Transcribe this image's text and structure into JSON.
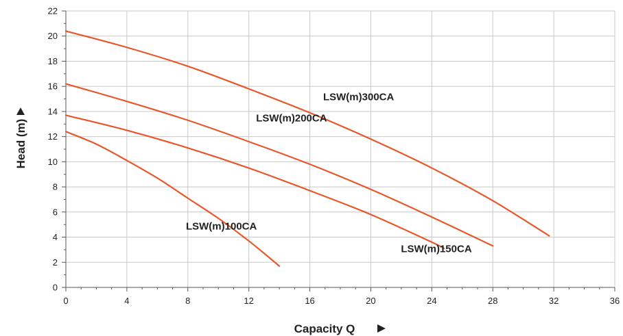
{
  "chart_data": {
    "type": "line",
    "title": "",
    "xlabel": "Capacity Q",
    "ylabel": "Head (m)",
    "xlim": [
      0,
      36
    ],
    "ylim": [
      0,
      22
    ],
    "xticks": [
      0,
      4,
      8,
      12,
      16,
      20,
      24,
      28,
      32,
      36
    ],
    "yticks": [
      0,
      2,
      4,
      6,
      8,
      10,
      12,
      14,
      16,
      18,
      20,
      22
    ],
    "grid": true,
    "legend": "none",
    "line_color": "#e8572a",
    "series": [
      {
        "name": "LSW(m)100CA",
        "x": [
          0,
          2,
          4,
          6,
          8,
          10,
          12,
          14
        ],
        "y": [
          12.4,
          11.4,
          10.1,
          8.7,
          7.1,
          5.5,
          3.7,
          1.7
        ]
      },
      {
        "name": "LSW(m)150CA",
        "x": [
          0,
          4,
          8,
          12,
          16,
          20,
          24,
          24.8
        ],
        "y": [
          13.7,
          12.5,
          11.1,
          9.5,
          7.7,
          5.8,
          3.6,
          3.1
        ]
      },
      {
        "name": "LSW(m)200CA",
        "x": [
          0,
          4,
          8,
          12,
          16,
          20,
          24,
          28
        ],
        "y": [
          16.2,
          14.8,
          13.3,
          11.6,
          9.8,
          7.8,
          5.6,
          3.3
        ]
      },
      {
        "name": "LSW(m)300CA",
        "x": [
          0,
          4,
          8,
          12,
          16,
          20,
          24,
          28,
          31.7
        ],
        "y": [
          20.4,
          19.1,
          17.6,
          15.8,
          13.9,
          11.8,
          9.5,
          6.9,
          4.1
        ]
      }
    ]
  }
}
